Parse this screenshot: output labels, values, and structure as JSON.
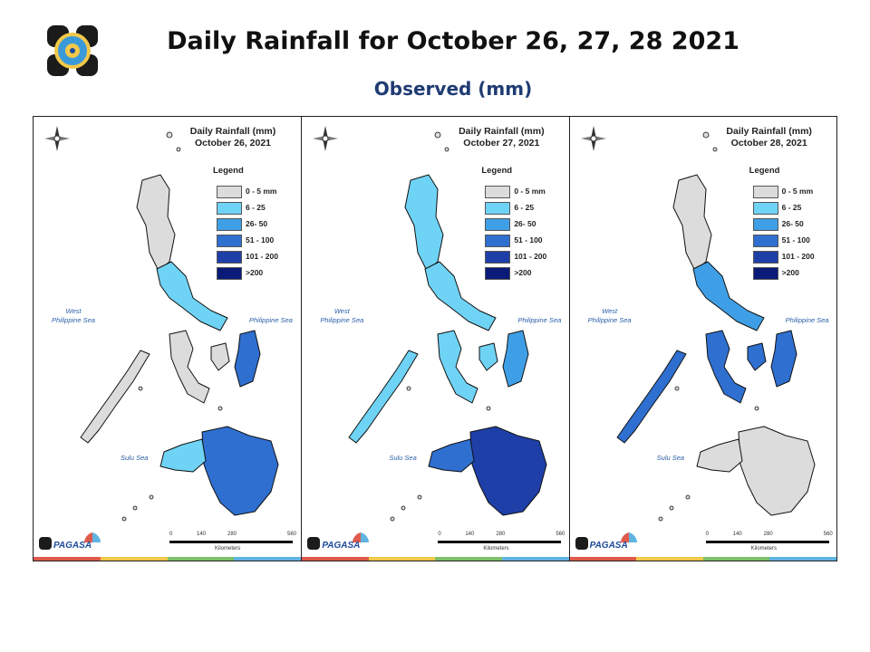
{
  "header": {
    "title": "Daily Rainfall for October 26, 27, 28 2021",
    "subtitle": "Observed (mm)"
  },
  "legend": {
    "title": "Legend",
    "items": [
      {
        "label": "0 - 5 mm",
        "color": "#dcdcdc"
      },
      {
        "label": "6 - 25",
        "color": "#6fd3f5"
      },
      {
        "label": "26- 50",
        "color": "#3f9fe6"
      },
      {
        "label": "51 - 100",
        "color": "#2f6fd0"
      },
      {
        "label": "101 - 200",
        "color": "#1f3fa8"
      },
      {
        "label": ">200",
        "color": "#0a1a78"
      }
    ]
  },
  "panels": [
    {
      "title_line1": "Daily Rainfall (mm)",
      "title_line2": "October 26, 2021",
      "intensity": {
        "north": "#dcdcdc",
        "luzon_south": "#6fd3f5",
        "visayas": "#dcdcdc",
        "east_visayas": "#2f6fd0",
        "palawan": "#dcdcdc",
        "mindanao": "#2f6fd0",
        "mindanao_west": "#6fd3f5"
      }
    },
    {
      "title_line1": "Daily Rainfall (mm)",
      "title_line2": "October 27, 2021",
      "intensity": {
        "north": "#6fd3f5",
        "luzon_south": "#6fd3f5",
        "visayas": "#6fd3f5",
        "east_visayas": "#3f9fe6",
        "palawan": "#6fd3f5",
        "mindanao": "#1f3fa8",
        "mindanao_west": "#2f6fd0"
      }
    },
    {
      "title_line1": "Daily Rainfall (mm)",
      "title_line2": "October 28, 2021",
      "intensity": {
        "north": "#dcdcdc",
        "luzon_south": "#3f9fe6",
        "visayas": "#2f6fd0",
        "east_visayas": "#2f6fd0",
        "palawan": "#2f6fd0",
        "mindanao": "#dcdcdc",
        "mindanao_west": "#dcdcdc"
      }
    }
  ],
  "seas": {
    "west": "West\nPhilippine Sea",
    "east": "Philippine Sea",
    "sulu": "Sulu Sea"
  },
  "scale": {
    "ticks": [
      "0",
      "140",
      "280",
      "560"
    ],
    "unit": "Kilometers"
  },
  "brand": {
    "name": "PAGASA"
  },
  "strip_colors": [
    "#e05a4c",
    "#f3c84a",
    "#7fbf6a",
    "#5fb4e0"
  ]
}
